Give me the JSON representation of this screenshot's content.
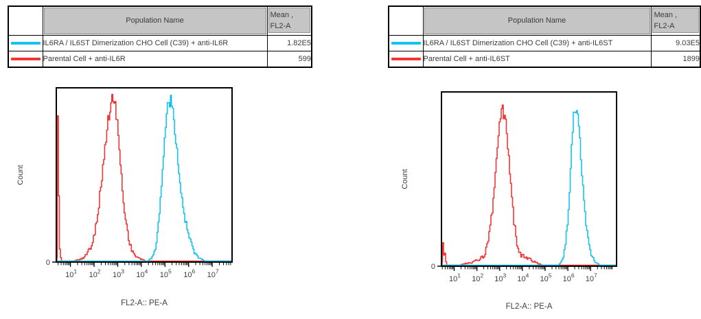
{
  "panels": [
    {
      "id": "anti-IL6R",
      "table": {
        "population_header": "Population Name",
        "mean_header_line1": "Mean ,",
        "mean_header_line2": "FL2-A",
        "rows": [
          {
            "swatch_color": "#12c3f0",
            "population": "IL6RA / IL6ST Dimerization CHO Cell (C39) + anti-IL6R",
            "mean": "1.82E5"
          },
          {
            "swatch_color": "#f03535",
            "population": "Parental Cell + anti-IL6R",
            "mean": "599"
          }
        ]
      }
    },
    {
      "id": "anti-IL6ST",
      "table": {
        "population_header": "Population Name",
        "mean_header_line1": "Mean ,",
        "mean_header_line2": "FL2-A",
        "rows": [
          {
            "swatch_color": "#12c3f0",
            "population": "IL6RA / IL6ST Dimerization CHO Cell (C39) + anti-IL6ST",
            "mean": "9.03E5"
          },
          {
            "swatch_color": "#f03535",
            "population": "Parental Cell + anti-IL6ST",
            "mean": "1899"
          }
        ]
      }
    }
  ],
  "chart_data": [
    {
      "type": "area",
      "subtype": "flow-cytometry-histogram",
      "title": "",
      "xlabel": "FL2-A:: PE-A",
      "ylabel": "Count",
      "x_scale": "log10",
      "x_range_log10": [
        0.4,
        7.84
      ],
      "x_tick_exponents": [
        1,
        2,
        3,
        4,
        5,
        6,
        7
      ],
      "y_tick_labels": [
        "0"
      ],
      "grid": false,
      "legend_position": "table-above",
      "series": [
        {
          "name": "Parental Cell + anti-IL6R",
          "color": "#f03535",
          "mean_fl2a": "599",
          "peak_log10": 2.83,
          "peak_height_frac": 0.91,
          "sigma_left": 0.42,
          "sigma_right": 0.27,
          "bumps": [
            {
              "center": 3.35,
              "sigma": 0.18,
              "height": 0.08
            },
            {
              "center": 3.7,
              "sigma": 0.25,
              "height": 0.02
            },
            {
              "center": 2.3,
              "sigma": 0.55,
              "height": 0.03
            }
          ],
          "axis_edge_spike_height_frac": 0.84,
          "z": 1,
          "seed": 101
        },
        {
          "name": "IL6RA / IL6ST Dimerization CHO Cell (C39) + anti-IL6R",
          "color": "#12c3f0",
          "mean_fl2a": "1.82E5",
          "peak_log10": 5.19,
          "peak_height_frac": 0.93,
          "sigma_left": 0.27,
          "sigma_right": 0.35,
          "bumps": [
            {
              "center": 5.9,
              "sigma": 0.3,
              "height": 0.09
            }
          ],
          "axis_edge_spike_height_frac": 0,
          "z": 2,
          "seed": 202
        }
      ]
    },
    {
      "type": "area",
      "subtype": "flow-cytometry-histogram",
      "title": "",
      "xlabel": "FL2-A:: PE-A",
      "ylabel": "Count",
      "x_scale": "log10",
      "x_range_log10": [
        0.44,
        8.14
      ],
      "x_tick_exponents": [
        1,
        2,
        3,
        4,
        5,
        6,
        7
      ],
      "y_tick_labels": [
        "0"
      ],
      "grid": false,
      "legend_position": "table-above",
      "series": [
        {
          "name": "Parental Cell + anti-IL6ST",
          "color": "#f03535",
          "mean_fl2a": "1899",
          "peak_log10": 3.15,
          "peak_height_frac": 0.875,
          "sigma_left": 0.32,
          "sigma_right": 0.3,
          "bumps": [
            {
              "center": 4.1,
              "sigma": 0.35,
              "height": 0.04
            },
            {
              "center": 2.3,
              "sigma": 0.5,
              "height": 0.03
            }
          ],
          "axis_edge_spike_height_frac": 0.13,
          "z": 1,
          "seed": 303
        },
        {
          "name": "IL6RA / IL6ST Dimerization CHO Cell (C39) + anti-IL6ST",
          "color": "#12c3f0",
          "mean_fl2a": "9.03E5",
          "peak_log10": 6.34,
          "peak_height_frac": 0.905,
          "sigma_left": 0.22,
          "sigma_right": 0.28,
          "bumps": [
            {
              "center": 7.0,
              "sigma": 0.2,
              "height": 0.02
            }
          ],
          "axis_edge_spike_height_frac": 0,
          "z": 2,
          "seed": 404
        }
      ]
    }
  ]
}
